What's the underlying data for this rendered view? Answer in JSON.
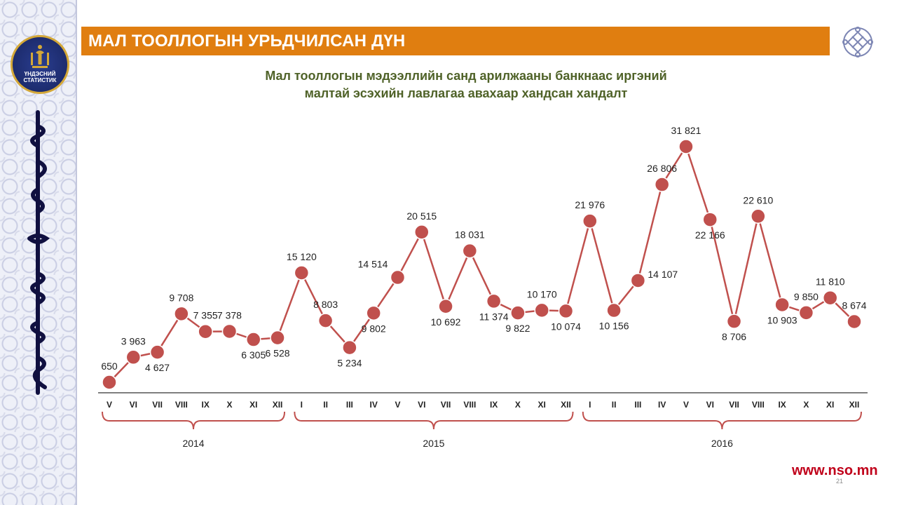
{
  "slide": {
    "title": "МАЛ  ТООЛЛОГЫН УРЬДЧИЛСАН ДҮН",
    "subtitle_line1": "Мал тооллогын  мэдээллийн  санд арилжааны банкнаас иргэний",
    "subtitle_line2": "малтай  эсэхийн лавлагаа авахаар хандсан хандалт",
    "logo_text_line1": "ҮНДЭСНИЙ",
    "logo_text_line2": "СТАТИСТИК",
    "website": "www.nso.mn",
    "page_number": "21"
  },
  "colors": {
    "title_bar": "#e07e10",
    "series_line": "#c0504d",
    "subtitle": "#4f6228",
    "website": "#c0001a",
    "emblem": "#1d2c6e"
  },
  "icons": {
    "emblem": "national-statistics-emblem-icon",
    "corner": "endless-knot-icon",
    "side_script": "mongolian-script-icon"
  },
  "chart_data": {
    "type": "line",
    "categories": [
      "V",
      "VI",
      "VII",
      "VIII",
      "IX",
      "X",
      "XI",
      "XII",
      "I",
      "II",
      "III",
      "IV",
      "V",
      "VI",
      "VII",
      "VIII",
      "IX",
      "X",
      "XI",
      "XII",
      "I",
      "II",
      "III",
      "IV",
      "V",
      "VI",
      "VII",
      "VIII",
      "IX",
      "X",
      "XI",
      "XII"
    ],
    "values": [
      650,
      3963,
      4627,
      9708,
      7355,
      7378,
      6305,
      6528,
      15120,
      8803,
      5234,
      9802,
      14514,
      20515,
      10692,
      18031,
      11374,
      9822,
      10170,
      10074,
      21976,
      10156,
      14107,
      26806,
      31821,
      22166,
      8706,
      22610,
      10903,
      9850,
      11810,
      8674
    ],
    "data_labels": [
      "650",
      "3 963",
      "4 627",
      "9 708",
      "7 355",
      "7 378",
      "6 305",
      "6 528",
      "15 120",
      "8 803",
      "5 234",
      "9 802",
      "14 514",
      "20 515",
      "10 692",
      "18 031",
      "11 374",
      "9 822",
      "10 170",
      "10 074",
      "21 976",
      "10 156",
      "14 107",
      "26 806",
      "31 821",
      "22 166",
      "8 706",
      "22 610",
      "10 903",
      "9 850",
      "11 810",
      "8 674"
    ],
    "label_positions": [
      "above",
      "above",
      "below",
      "above",
      "above",
      "above",
      "below",
      "below",
      "above",
      "above",
      "below",
      "below",
      "left",
      "above",
      "below",
      "above",
      "below",
      "below",
      "above",
      "below",
      "above",
      "below",
      "right",
      "above",
      "above",
      "below",
      "below",
      "above",
      "below",
      "above",
      "above",
      "above"
    ],
    "year_groups": [
      {
        "label": "2014",
        "start": 0,
        "end": 7
      },
      {
        "label": "2015",
        "start": 8,
        "end": 19
      },
      {
        "label": "2016",
        "start": 20,
        "end": 31
      }
    ],
    "ylim": [
      0,
      31821
    ],
    "grid": false,
    "legend": "none"
  }
}
